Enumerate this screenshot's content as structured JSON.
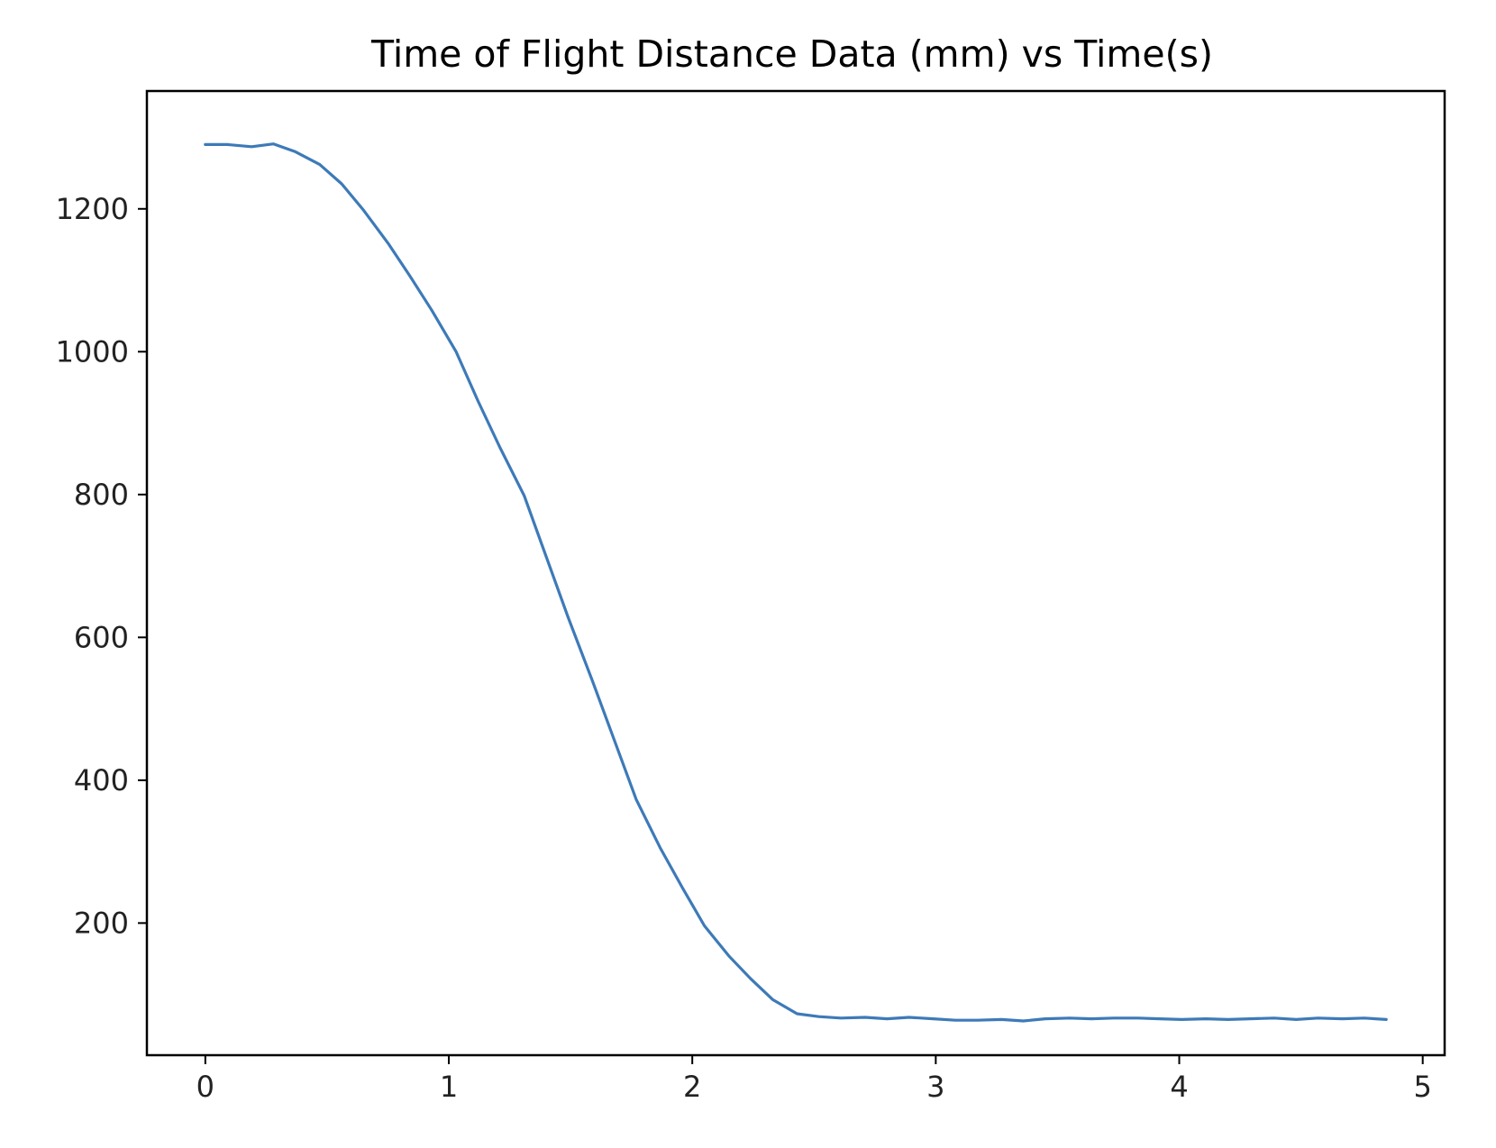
{
  "chart_data": {
    "type": "line",
    "title": "Time of Flight Distance Data (mm) vs Time(s)",
    "xlabel": "",
    "ylabel": "",
    "xlim": [
      -0.24,
      5.09
    ],
    "ylim": [
      15,
      1365
    ],
    "grid": false,
    "legend": "none",
    "xticks": [
      0,
      1,
      2,
      3,
      4,
      5
    ],
    "xtick_labels": [
      "0",
      "1",
      "2",
      "3",
      "4",
      "5"
    ],
    "yticks": [
      200,
      400,
      600,
      800,
      1000,
      1200
    ],
    "ytick_labels": [
      "200",
      "400",
      "600",
      "800",
      "1000",
      "1200"
    ],
    "series": [
      {
        "color": "#3d7ab8",
        "x": [
          0.0,
          0.09,
          0.19,
          0.28,
          0.37,
          0.47,
          0.56,
          0.65,
          0.75,
          0.84,
          0.93,
          1.03,
          1.12,
          1.21,
          1.31,
          1.4,
          1.49,
          1.59,
          1.68,
          1.77,
          1.87,
          1.96,
          2.05,
          2.15,
          2.24,
          2.33,
          2.43,
          2.52,
          2.61,
          2.71,
          2.8,
          2.89,
          2.99,
          3.08,
          3.17,
          3.27,
          3.36,
          3.45,
          3.55,
          3.64,
          3.73,
          3.83,
          3.92,
          4.01,
          4.11,
          4.2,
          4.29,
          4.39,
          4.48,
          4.57,
          4.67,
          4.76,
          4.85
        ],
        "y": [
          1290,
          1290,
          1287,
          1291,
          1280,
          1262,
          1235,
          1198,
          1152,
          1106,
          1058,
          1000,
          931,
          866,
          798,
          713,
          628,
          539,
          456,
          373,
          304,
          249,
          196,
          154,
          122,
          93,
          73,
          69,
          67,
          68,
          66,
          68,
          66,
          64,
          64,
          65,
          63,
          66,
          67,
          66,
          67,
          67,
          66,
          65,
          66,
          65,
          66,
          67,
          65,
          67,
          66,
          67,
          65
        ]
      }
    ]
  }
}
